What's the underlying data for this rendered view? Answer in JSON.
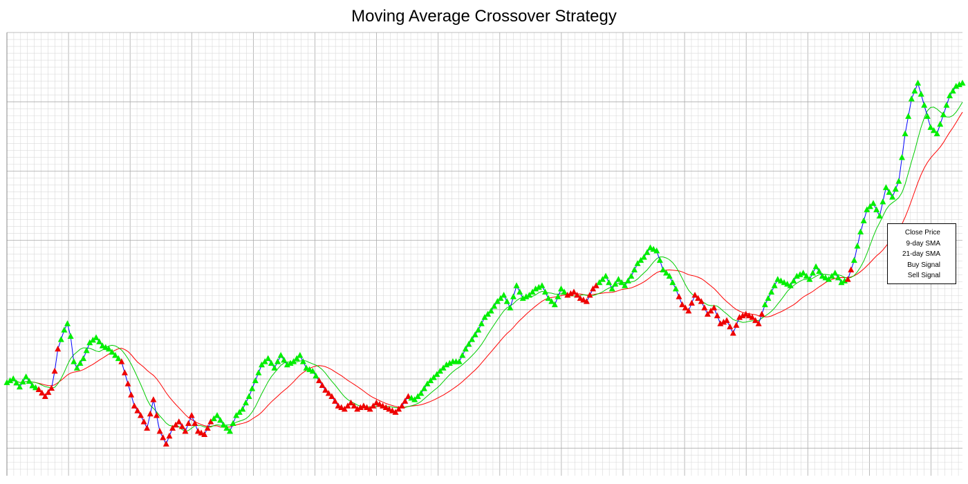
{
  "chart_data": {
    "type": "line",
    "title": "Moving Average Crossover Strategy",
    "xlabel": "",
    "ylabel": "",
    "x_range": [
      0,
      300
    ],
    "ylim": [
      30,
      100
    ],
    "grid": true,
    "legend_position": "right",
    "legend": [
      "Close Price",
      "9-day SMA",
      "21-day SMA",
      "Buy Signal",
      "Sell Signal"
    ],
    "colors": {
      "close": "#0000ff",
      "sma9": "#00cc00",
      "sma21": "#ff0000",
      "buy": "#00ee00",
      "sell": "#ee0000",
      "grid_minor": "#d9d9d9",
      "grid_major": "#aaaaaa"
    },
    "close_anchors": [
      [
        0,
        44.7
      ],
      [
        2,
        45.3
      ],
      [
        4,
        44.0
      ],
      [
        6,
        45.6
      ],
      [
        8,
        44.2
      ],
      [
        10,
        43.6
      ],
      [
        12,
        42.5
      ],
      [
        14,
        43.8
      ],
      [
        15,
        46.5
      ],
      [
        16,
        50.0
      ],
      [
        18,
        53.0
      ],
      [
        19,
        54.0
      ],
      [
        20,
        52.0
      ],
      [
        21,
        48.0
      ],
      [
        22,
        47.0
      ],
      [
        24,
        48.5
      ],
      [
        26,
        51.0
      ],
      [
        28,
        51.8
      ],
      [
        30,
        50.5
      ],
      [
        32,
        50.0
      ],
      [
        34,
        49.0
      ],
      [
        36,
        48.0
      ],
      [
        38,
        44.5
      ],
      [
        40,
        41.0
      ],
      [
        42,
        39.5
      ],
      [
        44,
        37.5
      ],
      [
        46,
        42.0
      ],
      [
        48,
        37.0
      ],
      [
        50,
        35.0
      ],
      [
        52,
        37.5
      ],
      [
        54,
        38.5
      ],
      [
        56,
        37.0
      ],
      [
        58,
        39.5
      ],
      [
        60,
        37.0
      ],
      [
        62,
        36.5
      ],
      [
        64,
        38.5
      ],
      [
        66,
        39.5
      ],
      [
        68,
        38.0
      ],
      [
        70,
        37.0
      ],
      [
        72,
        39.5
      ],
      [
        74,
        40.5
      ],
      [
        76,
        42.5
      ],
      [
        78,
        45.0
      ],
      [
        80,
        47.5
      ],
      [
        82,
        48.5
      ],
      [
        84,
        47.0
      ],
      [
        86,
        49.0
      ],
      [
        88,
        47.5
      ],
      [
        90,
        48.0
      ],
      [
        92,
        49.0
      ],
      [
        94,
        47.0
      ],
      [
        96,
        46.5
      ],
      [
        98,
        45.0
      ],
      [
        100,
        43.5
      ],
      [
        102,
        42.5
      ],
      [
        104,
        41.0
      ],
      [
        106,
        40.5
      ],
      [
        108,
        41.5
      ],
      [
        110,
        40.5
      ],
      [
        112,
        41.0
      ],
      [
        114,
        40.5
      ],
      [
        116,
        41.5
      ],
      [
        118,
        41.0
      ],
      [
        120,
        40.5
      ],
      [
        122,
        40.0
      ],
      [
        124,
        41.0
      ],
      [
        126,
        42.5
      ],
      [
        128,
        42.0
      ],
      [
        130,
        43.0
      ],
      [
        132,
        44.5
      ],
      [
        134,
        45.5
      ],
      [
        136,
        46.5
      ],
      [
        138,
        47.5
      ],
      [
        140,
        48.0
      ],
      [
        142,
        48.0
      ],
      [
        144,
        50.0
      ],
      [
        146,
        51.5
      ],
      [
        148,
        53.0
      ],
      [
        150,
        55.0
      ],
      [
        152,
        56.0
      ],
      [
        154,
        57.5
      ],
      [
        156,
        58.5
      ],
      [
        158,
        56.5
      ],
      [
        160,
        60.0
      ],
      [
        162,
        58.0
      ],
      [
        164,
        58.5
      ],
      [
        166,
        59.5
      ],
      [
        168,
        60.0
      ],
      [
        170,
        58.0
      ],
      [
        172,
        57.0
      ],
      [
        174,
        59.5
      ],
      [
        176,
        58.5
      ],
      [
        178,
        59.0
      ],
      [
        180,
        58.0
      ],
      [
        182,
        57.5
      ],
      [
        184,
        59.5
      ],
      [
        186,
        60.5
      ],
      [
        188,
        61.5
      ],
      [
        190,
        59.5
      ],
      [
        192,
        61.0
      ],
      [
        194,
        60.0
      ],
      [
        196,
        61.5
      ],
      [
        198,
        63.5
      ],
      [
        200,
        64.5
      ],
      [
        202,
        66.0
      ],
      [
        204,
        65.5
      ],
      [
        206,
        62.5
      ],
      [
        208,
        61.5
      ],
      [
        210,
        59.5
      ],
      [
        212,
        57.0
      ],
      [
        214,
        56.0
      ],
      [
        216,
        58.5
      ],
      [
        218,
        57.5
      ],
      [
        220,
        55.5
      ],
      [
        222,
        56.5
      ],
      [
        224,
        54.0
      ],
      [
        226,
        54.5
      ],
      [
        228,
        52.5
      ],
      [
        230,
        55.0
      ],
      [
        232,
        55.5
      ],
      [
        234,
        55.0
      ],
      [
        236,
        54.0
      ],
      [
        238,
        57.0
      ],
      [
        240,
        59.0
      ],
      [
        242,
        61.0
      ],
      [
        244,
        60.5
      ],
      [
        246,
        60.0
      ],
      [
        248,
        61.5
      ],
      [
        250,
        62.0
      ],
      [
        252,
        61.0
      ],
      [
        254,
        63.0
      ],
      [
        256,
        61.5
      ],
      [
        258,
        61.0
      ],
      [
        260,
        62.0
      ],
      [
        262,
        60.5
      ],
      [
        264,
        61.0
      ],
      [
        266,
        64.0
      ],
      [
        268,
        68.5
      ],
      [
        270,
        72.0
      ],
      [
        272,
        73.0
      ],
      [
        274,
        71.0
      ],
      [
        276,
        75.5
      ],
      [
        278,
        74.0
      ],
      [
        280,
        76.5
      ],
      [
        282,
        84.0
      ],
      [
        284,
        89.5
      ],
      [
        286,
        92.0
      ],
      [
        288,
        88.5
      ],
      [
        290,
        85.0
      ],
      [
        292,
        84.0
      ],
      [
        294,
        87.0
      ],
      [
        296,
        90.0
      ],
      [
        298,
        91.5
      ],
      [
        300,
        92.0
      ]
    ],
    "series": [
      {
        "name": "Close Price",
        "source": "close_anchors"
      },
      {
        "name": "9-day SMA",
        "window": 9
      },
      {
        "name": "21-day SMA",
        "window": 21
      }
    ],
    "signal_rule": "Buy Signal where 9-day SMA > 21-day SMA, Sell Signal where 9-day SMA < 21-day SMA"
  }
}
